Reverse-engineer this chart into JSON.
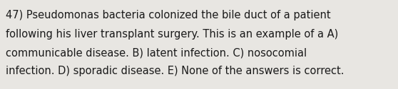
{
  "background_color": "#e8e6e2",
  "text_color": "#1a1a1a",
  "lines": [
    "47) Pseudomonas bacteria colonized the bile duct of a patient",
    "following his liver transplant surgery. This is an example of a A)",
    "communicable disease. B) latent infection. C) nosocomial",
    "infection. D) sporadic disease. E) None of the answers is correct."
  ],
  "font_size": 10.5,
  "font_family": "DejaVu Sans",
  "fig_width": 5.58,
  "fig_height": 1.26,
  "dpi": 100
}
